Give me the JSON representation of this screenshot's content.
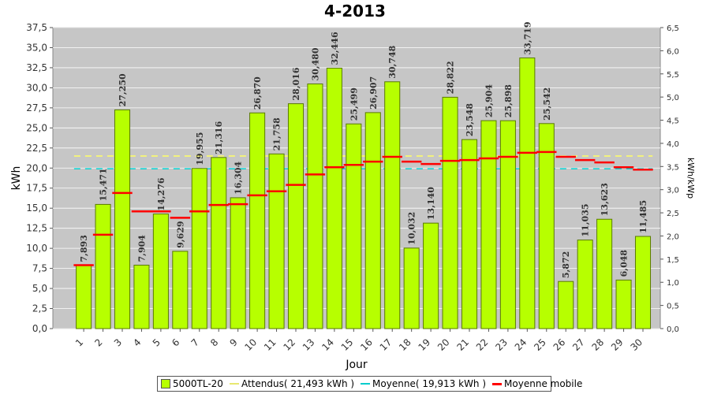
{
  "chart_data": {
    "type": "bar",
    "title": "4-2013",
    "xlabel": "Jour",
    "ylabel": "kWh",
    "y2label": "kWh/kWp",
    "ylim": [
      0,
      37.5
    ],
    "y2lim": [
      0,
      6.5
    ],
    "yticks": [
      "0,0",
      "2,5",
      "5,0",
      "7,5",
      "10,0",
      "12,5",
      "15,0",
      "17,5",
      "20,0",
      "22,5",
      "25,0",
      "27,5",
      "30,0",
      "32,5",
      "35,0",
      "37,5"
    ],
    "y2ticks": [
      "0,0",
      "0,5",
      "1,0",
      "1,5",
      "2,0",
      "2,5",
      "3,0",
      "3,5",
      "4,0",
      "4,5",
      "5,0",
      "5,5",
      "6,0",
      "6,5"
    ],
    "categories": [
      "1",
      "2",
      "3",
      "4",
      "5",
      "6",
      "7",
      "8",
      "9",
      "10",
      "11",
      "12",
      "13",
      "14",
      "15",
      "16",
      "17",
      "18",
      "19",
      "20",
      "21",
      "22",
      "23",
      "24",
      "25",
      "26",
      "27",
      "28",
      "29",
      "30"
    ],
    "grid": true,
    "legend_position": "bottom",
    "series": [
      {
        "name": "5000TL-20",
        "type": "bar",
        "color": "#b7ff00",
        "values": [
          7.893,
          15.471,
          27.25,
          7.904,
          14.276,
          9.629,
          19.955,
          21.316,
          16.304,
          26.87,
          21.758,
          28.016,
          30.48,
          32.446,
          25.499,
          26.907,
          30.748,
          10.032,
          13.14,
          28.822,
          23.548,
          25.904,
          25.898,
          33.719,
          25.542,
          5.872,
          11.035,
          13.623,
          6.048,
          11.485
        ],
        "labels": [
          "7,893",
          "15,471",
          "27,250",
          "7,904",
          "14,276",
          "9,629",
          "19,955",
          "21,316",
          "16,304",
          "26,870",
          "21,758",
          "28,016",
          "30,480",
          "32,446",
          "25,499",
          "26,907",
          "30,748",
          "10,032",
          "13,140",
          "28,822",
          "23,548",
          "25,904",
          "25,898",
          "33,719",
          "25,542",
          "5,872",
          "11,035",
          "13,623",
          "6,048",
          "11,485"
        ]
      },
      {
        "name": "Attendus( 21,493 kWh )",
        "type": "hline",
        "color": "#ffff66",
        "value": 21.493
      },
      {
        "name": "Moyenne( 19,913 kWh )",
        "type": "hline",
        "color": "#00cccc",
        "value": 19.913
      },
      {
        "name": "Moyenne mobile",
        "type": "step",
        "color": "#ff0000",
        "values": [
          7.9,
          11.7,
          16.9,
          14.6,
          14.6,
          13.8,
          14.6,
          15.4,
          15.5,
          16.6,
          17.1,
          17.9,
          19.2,
          20.1,
          20.4,
          20.8,
          21.4,
          20.8,
          20.5,
          20.9,
          21.0,
          21.2,
          21.4,
          21.9,
          22.0,
          21.4,
          21.0,
          20.7,
          20.1,
          19.8
        ]
      }
    ]
  },
  "legend": {
    "items": [
      {
        "label": "5000TL-20",
        "kind": "box",
        "color": "#b7ff00"
      },
      {
        "label": "Attendus( 21,493 kWh )",
        "kind": "line",
        "color": "#ffff66"
      },
      {
        "label": "Moyenne( 19,913 kWh )",
        "kind": "line",
        "color": "#00cccc"
      },
      {
        "label": "Moyenne mobile",
        "kind": "line",
        "color": "#ff0000"
      }
    ]
  }
}
